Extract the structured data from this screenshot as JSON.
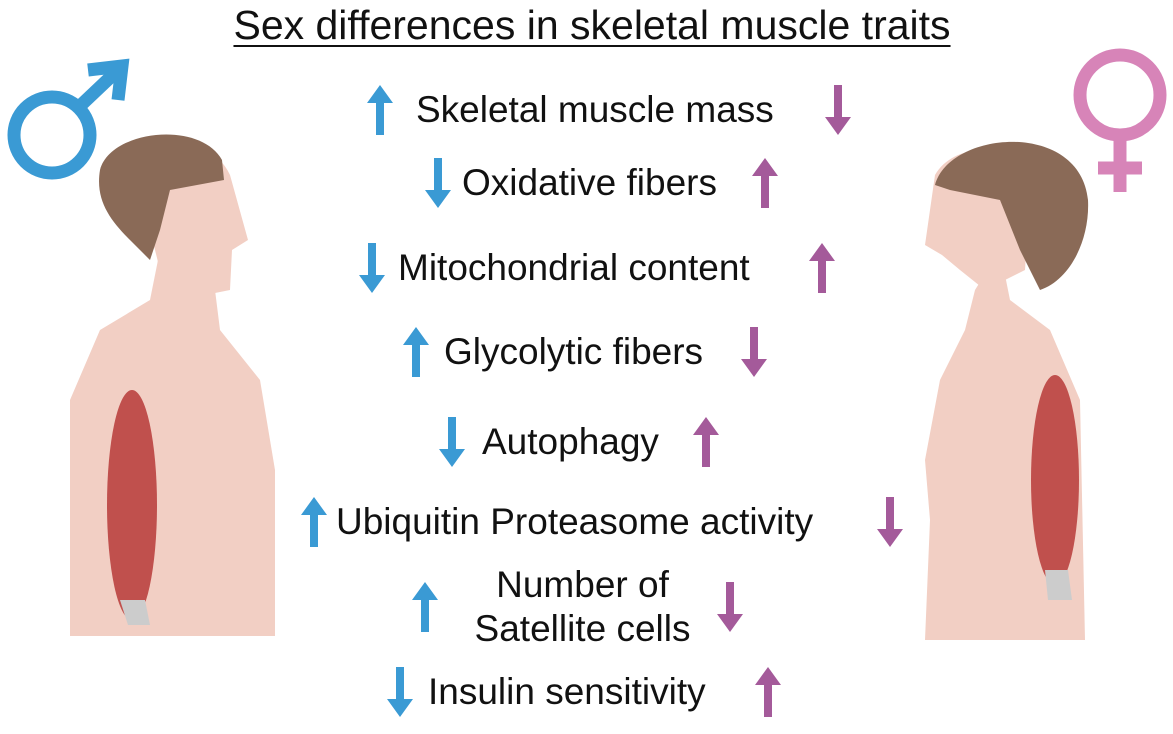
{
  "title": "Sex differences in skeletal muscle traits",
  "colors": {
    "male": "#3a9ad4",
    "female": "#a45a9a",
    "female_symbol": "#d784b8",
    "skin": "#f2cfc4",
    "hair": "#8a6a57",
    "muscle": "#c0504d"
  },
  "icons": {
    "male": "male-symbol-icon",
    "female": "female-symbol-icon"
  },
  "traits": [
    {
      "label": "Skeletal muscle mass",
      "male": "up",
      "female": "down"
    },
    {
      "label": "Oxidative fibers",
      "male": "down",
      "female": "up"
    },
    {
      "label": "Mitochondrial content",
      "male": "down",
      "female": "up"
    },
    {
      "label": "Glycolytic fibers",
      "male": "up",
      "female": "down"
    },
    {
      "label": "Autophagy",
      "male": "down",
      "female": "up"
    },
    {
      "label": "Ubiquitin Proteasome activity",
      "male": "up",
      "female": "down"
    },
    {
      "label_line1": "Number of",
      "label_line2": "Satellite cells",
      "male": "up",
      "female": "down"
    },
    {
      "label": "Insulin sensitivity",
      "male": "down",
      "female": "up"
    }
  ]
}
